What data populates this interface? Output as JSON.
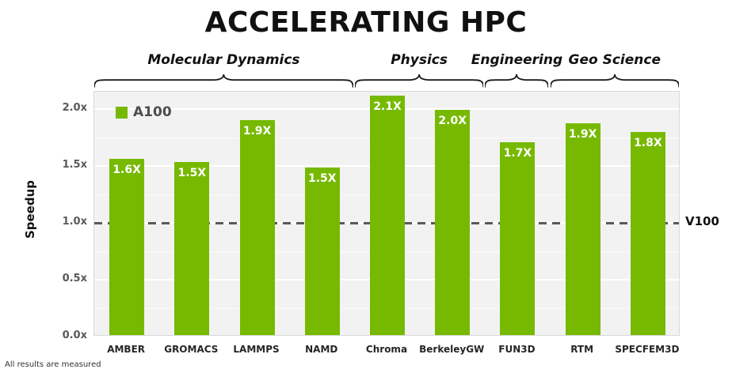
{
  "title": "ACCELERATING HPC",
  "footer": "All results are measured",
  "ylabel": "Speedup",
  "legend": {
    "label": "A100",
    "color": "#76b900"
  },
  "baseline": {
    "label": "V100",
    "value": 1.0
  },
  "chart_data": {
    "type": "bar",
    "title": "ACCELERATING HPC",
    "xlabel": "",
    "ylabel": "Speedup",
    "ylim": [
      0,
      2.15
    ],
    "yticks": [
      0,
      0.5,
      1.0,
      1.5,
      2.0
    ],
    "ytick_labels": [
      "0.0x",
      "0.5x",
      "1.0x",
      "1.5x",
      "2.0x"
    ],
    "grid": true,
    "legend_position": "top-left",
    "series_color": "#76b900",
    "series_name": "A100",
    "categories": [
      "AMBER",
      "GROMACS",
      "LAMMPS",
      "NAMD",
      "Chroma",
      "BerkeleyGW",
      "FUN3D",
      "RTM",
      "SPECFEM3D"
    ],
    "values": [
      1.55,
      1.52,
      1.89,
      1.47,
      2.1,
      1.98,
      1.69,
      1.86,
      1.78
    ],
    "bar_labels": [
      "1.6X",
      "1.5X",
      "1.9X",
      "1.5X",
      "2.1X",
      "2.0X",
      "1.7X",
      "1.9X",
      "1.8X"
    ],
    "baseline": {
      "value": 1.0,
      "label": "V100"
    },
    "groups": [
      {
        "label": "Molecular Dynamics",
        "start": 0,
        "end": 3
      },
      {
        "label": "Physics",
        "start": 4,
        "end": 5
      },
      {
        "label": "Engineering",
        "start": 6,
        "end": 6
      },
      {
        "label": "Geo Science",
        "start": 7,
        "end": 8
      }
    ]
  }
}
